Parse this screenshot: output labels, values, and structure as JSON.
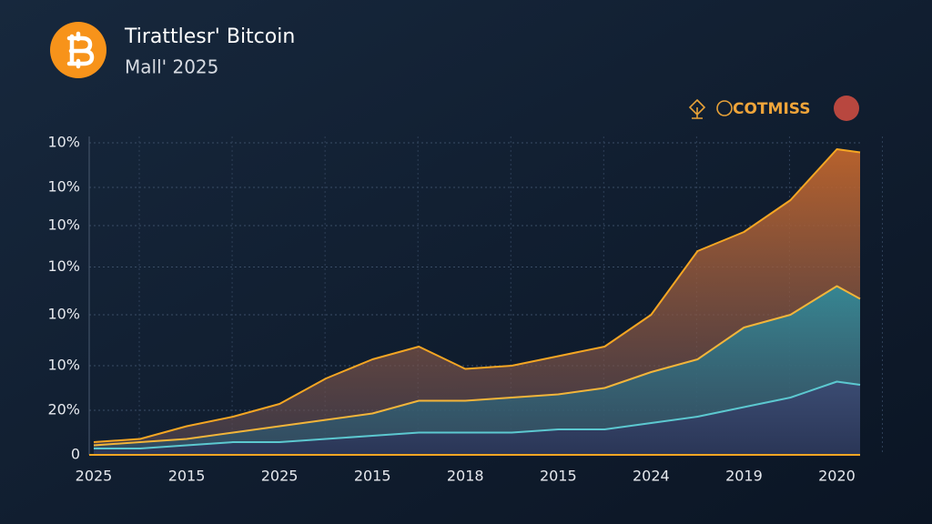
{
  "chart_data": {
    "type": "area",
    "title": "Tirattlesr' Bitcoin",
    "subtitle": "Mall' 2025",
    "brand": "COTMISS",
    "x": [
      0,
      0.5,
      1,
      1.5,
      2,
      2.5,
      3,
      3.5,
      4,
      4.5,
      5,
      5.5,
      6,
      6.5,
      7,
      7.5,
      8,
      8.25
    ],
    "xlim": [
      0,
      8.25
    ],
    "xticks": [
      {
        "value": 0,
        "label": "2025"
      },
      {
        "value": 1,
        "label": "2015"
      },
      {
        "value": 2,
        "label": "2025"
      },
      {
        "value": 3,
        "label": "2015"
      },
      {
        "value": 4,
        "label": "2018"
      },
      {
        "value": 5,
        "label": "2015"
      },
      {
        "value": 6,
        "label": "2024"
      },
      {
        "value": 7,
        "label": "2019"
      },
      {
        "value": 8,
        "label": "2020"
      }
    ],
    "ylim": [
      0,
      100
    ],
    "yticks": [
      0,
      {
        "value": 14,
        "label": "20%"
      },
      {
        "value": 28,
        "label": "10%"
      },
      {
        "value": 44,
        "label": "10%"
      },
      {
        "value": 59,
        "label": "10%"
      },
      {
        "value": 72,
        "label": "10%"
      },
      {
        "value": 84,
        "label": "10%"
      },
      {
        "value": 98,
        "label": "10%"
      }
    ],
    "grid": true,
    "series": [
      {
        "color": "#f5a623",
        "values": [
          4,
          5,
          9,
          12,
          16,
          24,
          30,
          34,
          27,
          28,
          31,
          34,
          44,
          64,
          70,
          80,
          96,
          95
        ]
      },
      {
        "color": "#f2b53a",
        "values": [
          3,
          4,
          5,
          7,
          9,
          11,
          13,
          17,
          17,
          18,
          19,
          21,
          26,
          30,
          40,
          44,
          53,
          49
        ]
      },
      {
        "color": "#5cc8d0",
        "values": [
          2,
          2,
          3,
          4,
          4,
          5,
          6,
          7,
          7,
          7,
          8,
          8,
          10,
          12,
          15,
          18,
          23,
          22
        ]
      }
    ]
  }
}
